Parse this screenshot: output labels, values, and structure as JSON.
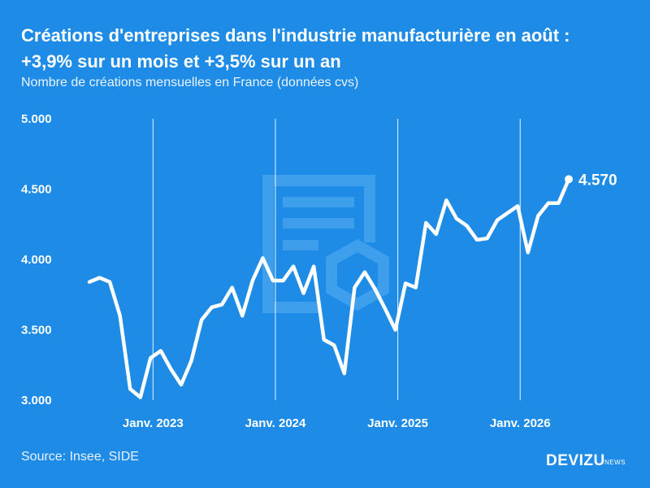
{
  "header": {
    "title_line1": "Créations d'entreprises dans l'industrie manufacturière en août :",
    "title_line2": "+3,9% sur un mois et +3,5% sur un an",
    "subtitle": "Nombre de créations mensuelles en France (données cvs)"
  },
  "footer": {
    "source": "Source: Insee, SIDE",
    "brand": "DEVIZU",
    "brand_suffix": "NEWS"
  },
  "colors": {
    "background": "#1e8ce6",
    "line": "#ffffff",
    "watermark": "#5aaef0"
  },
  "chart_data": {
    "type": "line",
    "title": "Créations d'entreprises dans l'industrie manufacturière en août : +3,9% sur un mois et +3,5% sur un an",
    "subtitle": "Nombre de créations mensuelles en France (données cvs)",
    "xlabel": "",
    "ylabel": "",
    "ylim": [
      3000,
      5000
    ],
    "yticks": [
      3000,
      3500,
      4000,
      4500,
      5000
    ],
    "ytick_labels": [
      "3.000",
      "3.500",
      "4.000",
      "4.500",
      "5.000"
    ],
    "xticks": [
      {
        "label": "Janv. 2023",
        "index": 6
      },
      {
        "label": "Janv. 2024",
        "index": 18
      },
      {
        "label": "Janv. 2025",
        "index": 30
      },
      {
        "label": "Janv. 2026",
        "index": 42
      }
    ],
    "grid": "vertical",
    "series": [
      {
        "values": [
          3840,
          3870,
          3840,
          3600,
          3080,
          3020,
          3300,
          3350,
          3220,
          3110,
          3280,
          3570,
          3660,
          3680,
          3800,
          3600,
          3850,
          4010,
          3850,
          3850,
          3950,
          3760,
          3950,
          3430,
          3390,
          3190,
          3800,
          3910,
          3790,
          3650,
          3500,
          3830,
          3800,
          4260,
          4180,
          4420,
          4290,
          4240,
          4140,
          4150,
          4280,
          4330,
          4380,
          4050,
          4310,
          4400,
          4400,
          4570
        ]
      }
    ],
    "last_value_label": "4.570"
  }
}
